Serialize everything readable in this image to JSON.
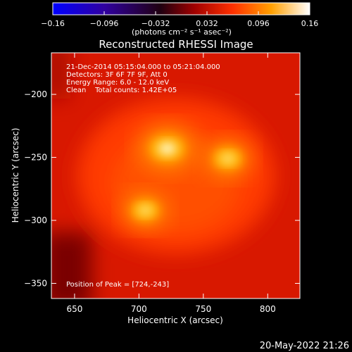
{
  "chart_data": {
    "type": "heatmap",
    "title": "Reconstructed RHESSI Image",
    "xlabel": "Heliocentric X (arcsec)",
    "ylabel": "Heliocentric Y (arcsec)",
    "xlim": [
      632,
      825
    ],
    "ylim": [
      -362,
      -167
    ],
    "x_ticks": [
      650,
      700,
      750,
      800
    ],
    "y_ticks": [
      -350,
      -300,
      -250,
      -200
    ],
    "x_tick_labels": [
      "650",
      "700",
      "750",
      "800"
    ],
    "y_tick_labels": [
      "−350",
      "−300",
      "−250",
      "−200"
    ],
    "colorbar": {
      "range": [
        -0.16,
        0.16
      ],
      "ticks": [
        -0.16,
        -0.096,
        -0.032,
        0.032,
        0.096,
        0.16
      ],
      "tick_labels": [
        "−0.16",
        "−0.096",
        "−0.032",
        "0.032",
        "0.096",
        "0.16"
      ],
      "unit_label": "(photons cm⁻² s⁻¹ asec⁻²)",
      "colors": [
        "#0000ff",
        "#000000",
        "#c00000",
        "#ff6000",
        "#ffc000",
        "#ffffff"
      ]
    },
    "annotations": [
      "21-Dec-2014 05:15:04.000 to 05:21:04.000",
      "Detectors: 3F 6F 7F 9F, Att 0",
      "Energy Range: 6.0 - 12.0 keV",
      "Clean    Total counts: 1.42E+05"
    ],
    "peak_label": "Position of Peak = [724,-243]",
    "sources": [
      {
        "x": 722,
        "y": -243,
        "value": 0.16
      },
      {
        "x": 769,
        "y": -251,
        "value": 0.13
      },
      {
        "x": 705,
        "y": -292,
        "value": 0.125
      }
    ],
    "background_level": 0.055
  },
  "footer": {
    "timestamp": "20-May-2022 21:26"
  }
}
